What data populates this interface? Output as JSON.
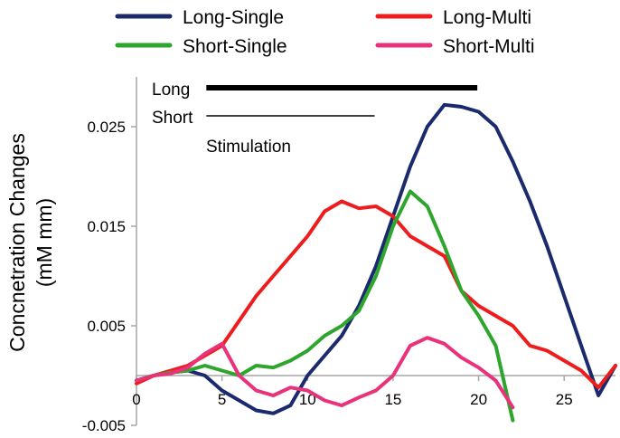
{
  "chart_data": {
    "type": "line",
    "title": "",
    "xlabel": "",
    "ylabel_line1": "Concnetration Changes",
    "ylabel_line2": "(mM mm)",
    "xlim": [
      0,
      28
    ],
    "ylim": [
      -0.005,
      0.03
    ],
    "x_ticks": [
      {
        "value": 0,
        "label": "0"
      },
      {
        "value": 5,
        "label": "5"
      },
      {
        "value": 10,
        "label": "10"
      },
      {
        "value": 15,
        "label": "15"
      },
      {
        "value": 20,
        "label": "20"
      },
      {
        "value": 25,
        "label": "25"
      }
    ],
    "y_ticks": [
      {
        "value": 0.025,
        "label": "0.025"
      },
      {
        "value": 0.015,
        "label": "0.015"
      },
      {
        "value": 0.005,
        "label": "0.005"
      },
      {
        "value": -0.005,
        "label": "-0.005"
      }
    ],
    "zero_line": true,
    "legend_position": "top",
    "series": [
      {
        "name": "Long-Single",
        "color": "#1a2a6c",
        "points": [
          [
            0,
            -0.0005
          ],
          [
            1,
            0.0
          ],
          [
            2,
            0.0003
          ],
          [
            3,
            0.0005
          ],
          [
            4,
            0.0
          ],
          [
            5,
            -0.0015
          ],
          [
            6,
            -0.0025
          ],
          [
            7,
            -0.0035
          ],
          [
            8,
            -0.0038
          ],
          [
            9,
            -0.003
          ],
          [
            10,
            0.0
          ],
          [
            11,
            0.002
          ],
          [
            12,
            0.004
          ],
          [
            13,
            0.007
          ],
          [
            14,
            0.011
          ],
          [
            15,
            0.016
          ],
          [
            16,
            0.021
          ],
          [
            17,
            0.025
          ],
          [
            18,
            0.0272
          ],
          [
            19,
            0.027
          ],
          [
            20,
            0.0265
          ],
          [
            21,
            0.025
          ],
          [
            22,
            0.0215
          ],
          [
            23,
            0.0175
          ],
          [
            24,
            0.013
          ],
          [
            25,
            0.008
          ],
          [
            26,
            0.003
          ],
          [
            27,
            -0.002
          ],
          [
            28,
            0.001
          ]
        ]
      },
      {
        "name": "Long-Multi",
        "color": "#ee1c1c",
        "points": [
          [
            0,
            -0.0008
          ],
          [
            1,
            0.0
          ],
          [
            2,
            0.0005
          ],
          [
            3,
            0.001
          ],
          [
            4,
            0.002
          ],
          [
            5,
            0.003
          ],
          [
            6,
            0.0055
          ],
          [
            7,
            0.008
          ],
          [
            8,
            0.01
          ],
          [
            9,
            0.012
          ],
          [
            10,
            0.014
          ],
          [
            11,
            0.0165
          ],
          [
            12,
            0.0175
          ],
          [
            13,
            0.0168
          ],
          [
            14,
            0.017
          ],
          [
            15,
            0.016
          ],
          [
            16,
            0.014
          ],
          [
            17,
            0.013
          ],
          [
            18,
            0.012
          ],
          [
            19,
            0.0085
          ],
          [
            20,
            0.007
          ],
          [
            21,
            0.006
          ],
          [
            22,
            0.005
          ],
          [
            23,
            0.003
          ],
          [
            24,
            0.0025
          ],
          [
            25,
            0.0015
          ],
          [
            26,
            0.0005
          ],
          [
            27,
            -0.0012
          ],
          [
            28,
            0.001
          ]
        ]
      },
      {
        "name": "Short-Single",
        "color": "#2ea62e",
        "points": [
          [
            0,
            -0.0005
          ],
          [
            1,
            0.0
          ],
          [
            2,
            0.0003
          ],
          [
            3,
            0.0005
          ],
          [
            4,
            0.001
          ],
          [
            5,
            0.0005
          ],
          [
            6,
            0.0
          ],
          [
            7,
            0.001
          ],
          [
            8,
            0.0008
          ],
          [
            9,
            0.0015
          ],
          [
            10,
            0.0025
          ],
          [
            11,
            0.004
          ],
          [
            12,
            0.005
          ],
          [
            13,
            0.0065
          ],
          [
            14,
            0.01
          ],
          [
            15,
            0.015
          ],
          [
            16,
            0.0185
          ],
          [
            17,
            0.017
          ],
          [
            18,
            0.013
          ],
          [
            19,
            0.0085
          ],
          [
            20,
            0.006
          ],
          [
            21,
            0.003
          ],
          [
            22,
            -0.0045
          ]
        ]
      },
      {
        "name": "Short-Multi",
        "color": "#e8337a",
        "points": [
          [
            0,
            -0.0005
          ],
          [
            1,
            0.0
          ],
          [
            2,
            0.0002
          ],
          [
            3,
            0.0008
          ],
          [
            4,
            0.0022
          ],
          [
            5,
            0.0032
          ],
          [
            6,
            0.0
          ],
          [
            7,
            -0.0015
          ],
          [
            8,
            -0.002
          ],
          [
            9,
            -0.0012
          ],
          [
            10,
            -0.0015
          ],
          [
            11,
            -0.0025
          ],
          [
            12,
            -0.003
          ],
          [
            13,
            -0.0022
          ],
          [
            14,
            -0.0015
          ],
          [
            15,
            0.0
          ],
          [
            16,
            0.003
          ],
          [
            17,
            0.0038
          ],
          [
            18,
            0.0032
          ],
          [
            19,
            0.0018
          ],
          [
            20,
            0.0008
          ],
          [
            21,
            -0.0005
          ],
          [
            22,
            -0.0032
          ]
        ]
      }
    ],
    "stimulation_bars": [
      {
        "label": "Long",
        "x_start": 2.5,
        "x_end": 19.5,
        "weight": "thick"
      },
      {
        "label": "Short",
        "x_start": 2.5,
        "x_end": 13.5,
        "weight": "thin"
      }
    ],
    "stimulation_label": "Stimulation"
  }
}
